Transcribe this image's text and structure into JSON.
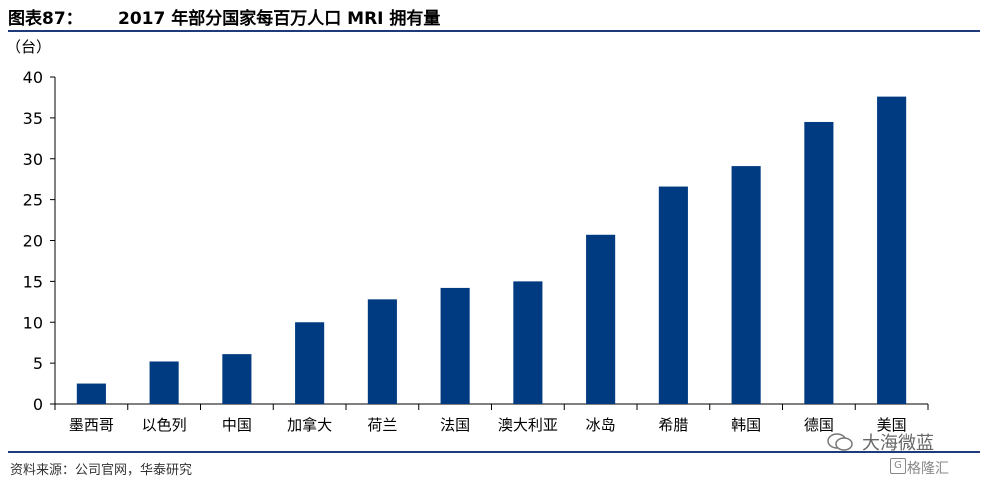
{
  "header": {
    "figure_label": "图表87：",
    "title": "2017 年部分国家每百万人口 MRI 拥有量"
  },
  "footer": {
    "source": "资料来源：公司官网，华泰研究",
    "watermark_text": "大海微蓝",
    "watermark_brand": "格隆汇",
    "watermark_brand_letter": "G"
  },
  "colors": {
    "bar": "#003a80",
    "rule": "#1f3a78"
  },
  "chart_data": {
    "type": "bar",
    "title": "2017 年部分国家每百万人口 MRI 拥有量",
    "unit_label": "（台）",
    "categories": [
      "墨西哥",
      "以色列",
      "中国",
      "加拿大",
      "荷兰",
      "法国",
      "澳大利亚",
      "冰岛",
      "希腊",
      "韩国",
      "德国",
      "美国"
    ],
    "values": [
      2.5,
      5.2,
      6.1,
      10.0,
      12.8,
      14.2,
      15.0,
      20.7,
      26.6,
      29.1,
      34.5,
      37.6
    ],
    "ylim": [
      0,
      40
    ],
    "yticks": [
      0,
      5,
      10,
      15,
      20,
      25,
      30,
      35,
      40
    ],
    "grid": false,
    "xlabel": "",
    "ylabel": ""
  }
}
